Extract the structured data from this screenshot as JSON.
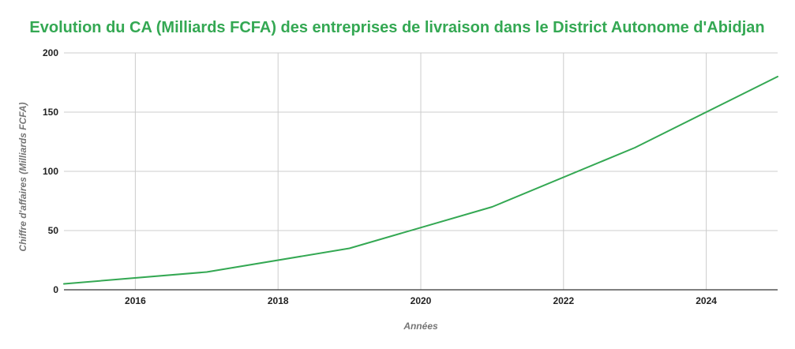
{
  "chart_data": {
    "type": "line",
    "title": "Evolution du CA (Milliards FCFA) des entreprises de livraison dans le District Autonome d'Abidjan",
    "xlabel": "Années",
    "ylabel": "Chiffre d'affaires (Milliards FCFA)",
    "x": [
      2015,
      2017,
      2019,
      2021,
      2023,
      2025
    ],
    "series": [
      {
        "values": [
          5,
          15,
          35,
          70,
          120,
          180
        ]
      }
    ],
    "xlim": [
      2015,
      2025
    ],
    "ylim": [
      0,
      200
    ],
    "x_ticks": [
      "2016",
      "2018",
      "2020",
      "2022",
      "2024"
    ],
    "y_ticks": [
      "0",
      "50",
      "100",
      "150",
      "200"
    ],
    "grid": true,
    "colors": {
      "line": "#34a853",
      "title": "#34a853",
      "grid": "#cccccc",
      "axis": "#333333"
    }
  }
}
